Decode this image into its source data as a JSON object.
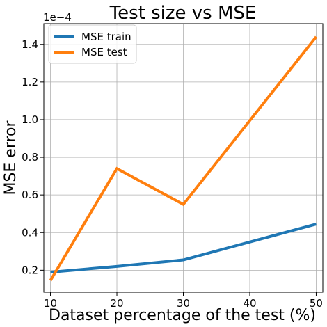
{
  "chart_data": {
    "type": "line",
    "title": "Test size vs MSE",
    "xlabel": "Dataset percentage of the test (%)",
    "ylabel": "MSE error",
    "y_multiplier_label": "1e−4",
    "x": [
      10,
      20,
      30,
      50
    ],
    "xticks": [
      10,
      20,
      30,
      40,
      50
    ],
    "yticks": [
      0.2,
      0.4,
      0.6,
      0.8,
      1.0,
      1.2,
      1.4
    ],
    "xlim": [
      9,
      51
    ],
    "ylim": [
      0.083,
      1.51
    ],
    "grid": true,
    "legend_position": "upper-left",
    "series": [
      {
        "name": "MSE train",
        "color": "#1f77b4",
        "values": [
          0.19,
          0.22,
          0.255,
          0.445
        ]
      },
      {
        "name": "MSE test",
        "color": "#ff7f0e",
        "values": [
          0.145,
          0.74,
          0.55,
          1.44
        ]
      }
    ]
  }
}
